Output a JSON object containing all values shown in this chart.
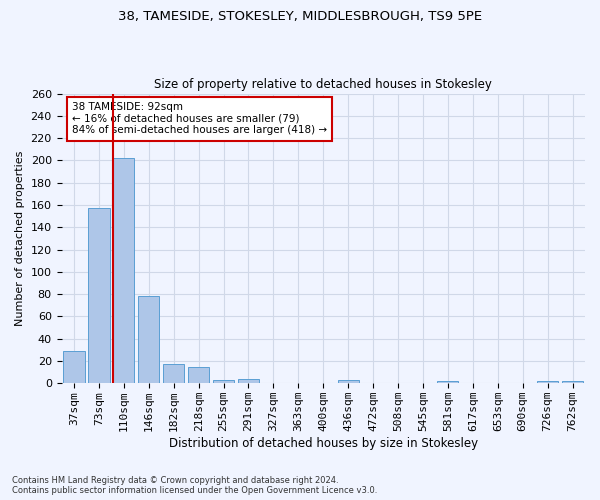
{
  "title_line1": "38, TAMESIDE, STOKESLEY, MIDDLESBROUGH, TS9 5PE",
  "title_line2": "Size of property relative to detached houses in Stokesley",
  "xlabel": "Distribution of detached houses by size in Stokesley",
  "ylabel": "Number of detached properties",
  "categories": [
    "37sqm",
    "73sqm",
    "110sqm",
    "146sqm",
    "182sqm",
    "218sqm",
    "255sqm",
    "291sqm",
    "327sqm",
    "363sqm",
    "400sqm",
    "436sqm",
    "472sqm",
    "508sqm",
    "545sqm",
    "581sqm",
    "617sqm",
    "653sqm",
    "690sqm",
    "726sqm",
    "762sqm"
  ],
  "values": [
    29,
    157,
    202,
    78,
    17,
    15,
    3,
    4,
    0,
    0,
    0,
    3,
    0,
    0,
    0,
    2,
    0,
    0,
    0,
    2,
    2
  ],
  "bar_color": "#aec6e8",
  "bar_edge_color": "#5a9fd4",
  "grid_color": "#d0d8e8",
  "background_color": "#f0f4ff",
  "vline_color": "#cc0000",
  "vline_pos": 1.55,
  "annotation_text": "38 TAMESIDE: 92sqm\n← 16% of detached houses are smaller (79)\n84% of semi-detached houses are larger (418) →",
  "annotation_box_color": "#ffffff",
  "annotation_box_edge": "#cc0000",
  "ylim": [
    0,
    260
  ],
  "yticks": [
    0,
    20,
    40,
    60,
    80,
    100,
    120,
    140,
    160,
    180,
    200,
    220,
    240,
    260
  ],
  "footnote": "Contains HM Land Registry data © Crown copyright and database right 2024.\nContains public sector information licensed under the Open Government Licence v3.0."
}
